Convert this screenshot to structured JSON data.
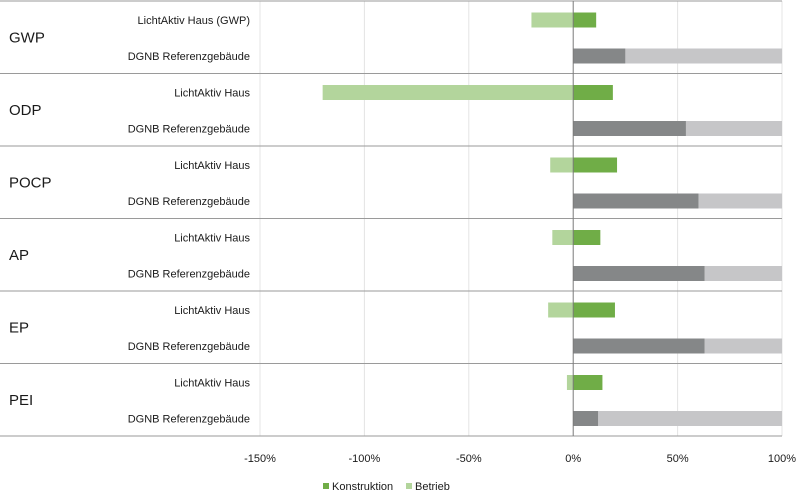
{
  "chart_data": {
    "type": "bar",
    "orientation": "horizontal",
    "stacked": true,
    "xlim": [
      -150,
      100
    ],
    "x_ticks": [
      "-150%",
      "-100%",
      "-50%",
      "0%",
      "50%",
      "100%"
    ],
    "grid": true,
    "legend_placement": "bottom-center",
    "series": [
      {
        "name": "Konstruktion",
        "color_lichtaktiv": "#70ad47",
        "color_dgnb": "#858788"
      },
      {
        "name": "Betrieb",
        "color_lichtaktiv": "#b3d59c",
        "color_dgnb": "#c6c6c8"
      }
    ],
    "groups": [
      {
        "category": "GWP",
        "bars": [
          {
            "label": "LichtAktiv Haus (GWP)",
            "Konstruktion": 11,
            "Betrieb": -20
          },
          {
            "label": "DGNB Referenzgebäude",
            "Konstruktion": 25,
            "Betrieb": 75
          }
        ]
      },
      {
        "category": "ODP",
        "bars": [
          {
            "label": "LichtAktiv Haus",
            "Konstruktion": 19,
            "Betrieb": -120
          },
          {
            "label": "DGNB Referenzgebäude",
            "Konstruktion": 54,
            "Betrieb": 46
          }
        ]
      },
      {
        "category": "POCP",
        "bars": [
          {
            "label": "LichtAktiv Haus",
            "Konstruktion": 21,
            "Betrieb": -11
          },
          {
            "label": "DGNB Referenzgebäude",
            "Konstruktion": 60,
            "Betrieb": 40
          }
        ]
      },
      {
        "category": "AP",
        "bars": [
          {
            "label": "LichtAktiv Haus",
            "Konstruktion": 13,
            "Betrieb": -10
          },
          {
            "label": "DGNB Referenzgebäude",
            "Konstruktion": 63,
            "Betrieb": 37
          }
        ]
      },
      {
        "category": "EP",
        "bars": [
          {
            "label": "LichtAktiv Haus",
            "Konstruktion": 20,
            "Betrieb": -12
          },
          {
            "label": "DGNB Referenzgebäude",
            "Konstruktion": 63,
            "Betrieb": 37
          }
        ]
      },
      {
        "category": "PEI",
        "bars": [
          {
            "label": "LichtAktiv Haus",
            "Konstruktion": 14,
            "Betrieb": -3
          },
          {
            "label": "DGNB Referenzgebäude",
            "Konstruktion": 12,
            "Betrieb": 88
          }
        ]
      }
    ],
    "legend": [
      "Konstruktion",
      "Betrieb"
    ]
  }
}
